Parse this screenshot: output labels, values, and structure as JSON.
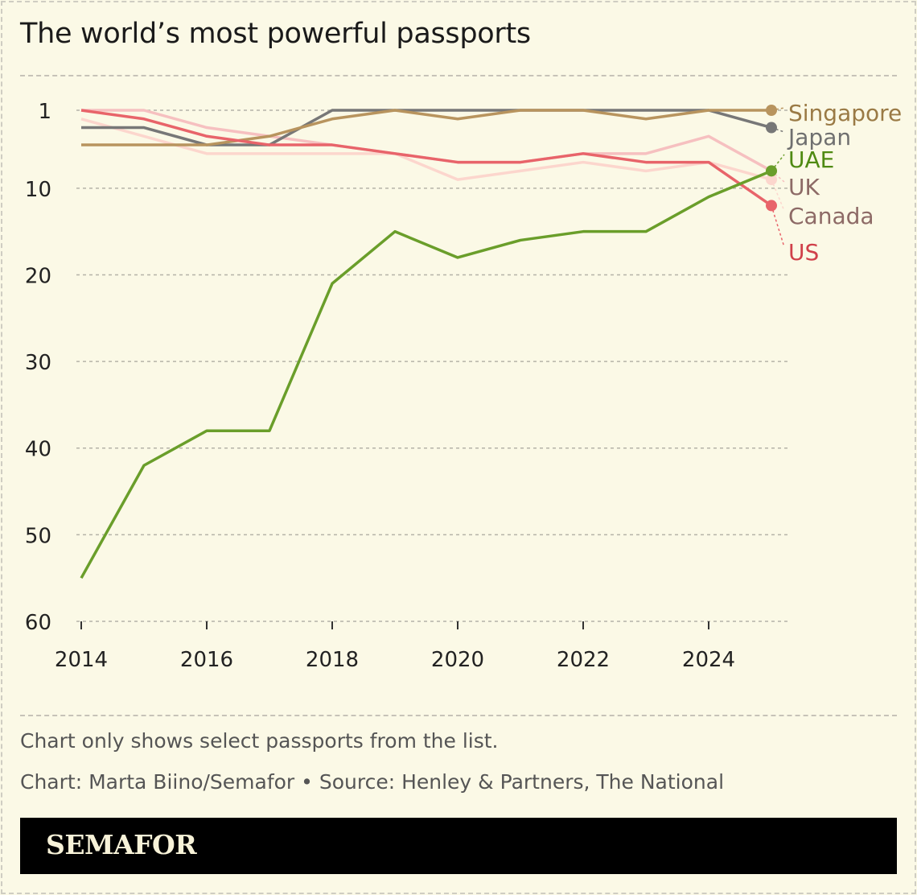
{
  "chart_data": {
    "type": "line",
    "title": "The world’s most powerful passports",
    "x": [
      2014,
      2015,
      2016,
      2017,
      2018,
      2019,
      2020,
      2021,
      2022,
      2023,
      2024,
      2025
    ],
    "x_ticks": [
      "2014",
      "2016",
      "2018",
      "2020",
      "2022",
      "2024"
    ],
    "y_ticks": [
      "1",
      "10",
      "20",
      "30",
      "40",
      "50",
      "60"
    ],
    "ylim": [
      1,
      60
    ],
    "y_reversed": true,
    "grid": "horizontal dashed",
    "series": [
      {
        "name": "Singapore",
        "color": "#b8945e",
        "label_color": "#9a7a45",
        "values": [
          5,
          5,
          5,
          4,
          2,
          1,
          2,
          1,
          1,
          2,
          1,
          1
        ]
      },
      {
        "name": "Japan",
        "color": "#777777",
        "label_color": "#6f6f6f",
        "values": [
          3,
          3,
          5,
          5,
          1,
          1,
          1,
          1,
          1,
          1,
          1,
          3
        ]
      },
      {
        "name": "UAE",
        "color": "#6a9e2a",
        "label_color": "#4f8a12",
        "values": [
          55,
          42,
          38,
          38,
          21,
          15,
          18,
          16,
          15,
          15,
          11,
          8
        ]
      },
      {
        "name": "UK",
        "color": "#f6c0c0",
        "label_color": "#8d6a66",
        "values": [
          1,
          1,
          3,
          4,
          5,
          6,
          7,
          7,
          6,
          6,
          4,
          8
        ]
      },
      {
        "name": "Canada",
        "color": "#fcd6cd",
        "label_color": "#8d6a66",
        "values": [
          2,
          4,
          6,
          6,
          6,
          6,
          9,
          8,
          7,
          8,
          7,
          9
        ]
      },
      {
        "name": "US",
        "color": "#e8646a",
        "label_color": "#d0404a",
        "values": [
          1,
          2,
          4,
          5,
          5,
          6,
          7,
          7,
          6,
          7,
          7,
          12
        ]
      }
    ]
  },
  "footer": {
    "note": "Chart only shows select passports from the list.",
    "credit": "Chart: Marta Biino/Semafor • Source: Henley & Partners, The National",
    "logo": "SEMAFOR"
  }
}
